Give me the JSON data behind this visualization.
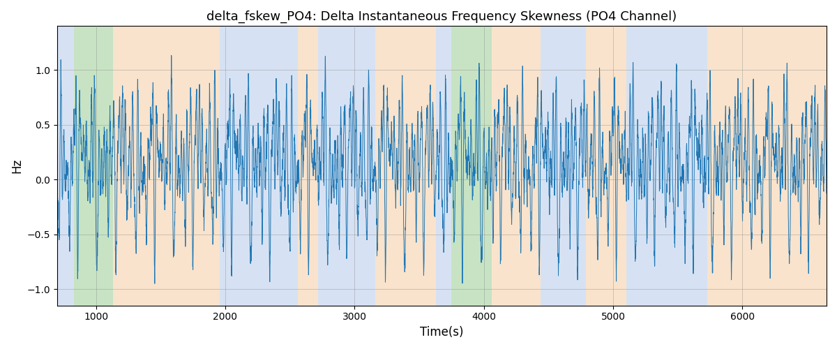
{
  "title": "delta_fskew_PO4: Delta Instantaneous Frequency Skewness (PO4 Channel)",
  "xlabel": "Time(s)",
  "ylabel": "Hz",
  "xlim": [
    700,
    6650
  ],
  "ylim": [
    -1.15,
    1.4
  ],
  "yticks": [
    -1.0,
    -0.5,
    0.0,
    0.5,
    1.0
  ],
  "xticks": [
    1000,
    2000,
    3000,
    4000,
    5000,
    6000
  ],
  "line_color": "#1f77b4",
  "line_width": 0.7,
  "background_regions": [
    {
      "xmin": 700,
      "xmax": 830,
      "color": "#aec6e8",
      "alpha": 0.5
    },
    {
      "xmin": 830,
      "xmax": 1130,
      "color": "#90c98a",
      "alpha": 0.5
    },
    {
      "xmin": 1130,
      "xmax": 1960,
      "color": "#f5c89a",
      "alpha": 0.5
    },
    {
      "xmin": 1960,
      "xmax": 2560,
      "color": "#aec6e8",
      "alpha": 0.5
    },
    {
      "xmin": 2560,
      "xmax": 2720,
      "color": "#f5c89a",
      "alpha": 0.5
    },
    {
      "xmin": 2720,
      "xmax": 3160,
      "color": "#aec6e8",
      "alpha": 0.5
    },
    {
      "xmin": 3160,
      "xmax": 3630,
      "color": "#f5c89a",
      "alpha": 0.5
    },
    {
      "xmin": 3630,
      "xmax": 3750,
      "color": "#aec6e8",
      "alpha": 0.5
    },
    {
      "xmin": 3750,
      "xmax": 4060,
      "color": "#90c98a",
      "alpha": 0.5
    },
    {
      "xmin": 4060,
      "xmax": 4440,
      "color": "#f5c89a",
      "alpha": 0.5
    },
    {
      "xmin": 4440,
      "xmax": 4790,
      "color": "#aec6e8",
      "alpha": 0.5
    },
    {
      "xmin": 4790,
      "xmax": 5100,
      "color": "#f5c89a",
      "alpha": 0.5
    },
    {
      "xmin": 5100,
      "xmax": 5730,
      "color": "#aec6e8",
      "alpha": 0.5
    },
    {
      "xmin": 5730,
      "xmax": 5870,
      "color": "#f5c89a",
      "alpha": 0.5
    },
    {
      "xmin": 5870,
      "xmax": 6650,
      "color": "#f5c89a",
      "alpha": 0.5
    }
  ],
  "n_points": 6000,
  "figsize": [
    12.0,
    5.0
  ],
  "dpi": 100
}
